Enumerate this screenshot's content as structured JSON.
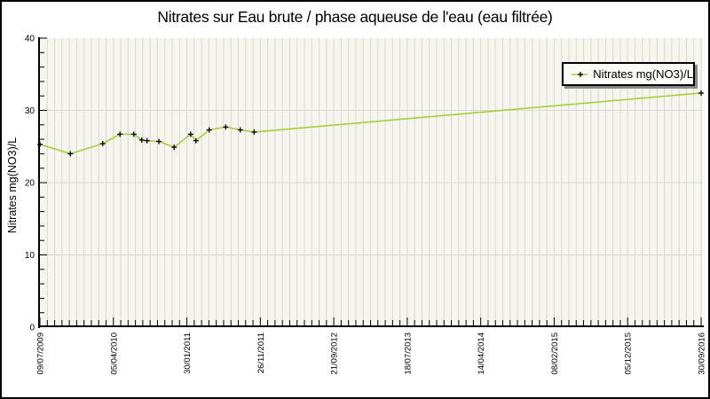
{
  "colors": {
    "line": "#a6ce3a",
    "marker": "#000000",
    "plot_bg": "#f6f6ee",
    "grid": "#d9d9d3",
    "axis": "#000000",
    "text": "#000000",
    "legend_bg": "#fbfbf6",
    "legend_shadow": "#8a8a8a"
  },
  "chart_data": {
    "type": "line",
    "title": "Nitrates sur Eau brute / phase aqueuse de l'eau (eau filtrée)",
    "ylabel": "Nitrates mg(NO3)/L",
    "xlabel": "",
    "ylim": [
      0,
      40
    ],
    "y_major_ticks": [
      0,
      10,
      20,
      30,
      40
    ],
    "y_minor_step": 2,
    "x_tick_labels": [
      "09/07/2009",
      "05/04/2010",
      "30/01/2011",
      "26/11/2011",
      "21/09/2012",
      "18/07/2013",
      "14/04/2014",
      "08/02/2015",
      "05/12/2015",
      "30/09/2016"
    ],
    "x_minor_per_major": 10,
    "grid": {
      "vertical": "every minor tick",
      "horizontal": "major ticks only"
    },
    "legend": {
      "position": "top-right",
      "entries": [
        "Nitrates mg(NO3)/L"
      ]
    },
    "series": [
      {
        "name": "Nitrates mg(NO3)/L",
        "color": "#a6ce3a",
        "marker": "plus",
        "marker_color": "#000000",
        "dates_estimated_from_axis": true,
        "points": [
          {
            "x_frac": 0.0,
            "date_est": "09/07/2009",
            "value": 25.3
          },
          {
            "x_frac": 0.046,
            "date_est": "06/11/2009",
            "value": 24.0
          },
          {
            "x_frac": 0.095,
            "date_est": "18/03/2010",
            "value": 25.4
          },
          {
            "x_frac": 0.121,
            "date_est": "24/05/2010",
            "value": 26.7
          },
          {
            "x_frac": 0.142,
            "date_est": "20/07/2010",
            "value": 26.7
          },
          {
            "x_frac": 0.154,
            "date_est": "21/08/2010",
            "value": 25.9
          },
          {
            "x_frac": 0.162,
            "date_est": "11/09/2010",
            "value": 25.8
          },
          {
            "x_frac": 0.18,
            "date_est": "27/10/2010",
            "value": 25.7
          },
          {
            "x_frac": 0.203,
            "date_est": "26/12/2010",
            "value": 24.9
          },
          {
            "x_frac": 0.228,
            "date_est": "03/03/2011",
            "value": 26.7
          },
          {
            "x_frac": 0.236,
            "date_est": "25/03/2011",
            "value": 25.8
          },
          {
            "x_frac": 0.256,
            "date_est": "17/05/2011",
            "value": 27.3
          },
          {
            "x_frac": 0.281,
            "date_est": "20/07/2011",
            "value": 27.7
          },
          {
            "x_frac": 0.303,
            "date_est": "18/09/2011",
            "value": 27.3
          },
          {
            "x_frac": 0.324,
            "date_est": "10/11/2011",
            "value": 27.0
          },
          {
            "x_frac": 1.0,
            "date_est": "30/09/2016",
            "value": 32.4
          }
        ]
      }
    ]
  }
}
